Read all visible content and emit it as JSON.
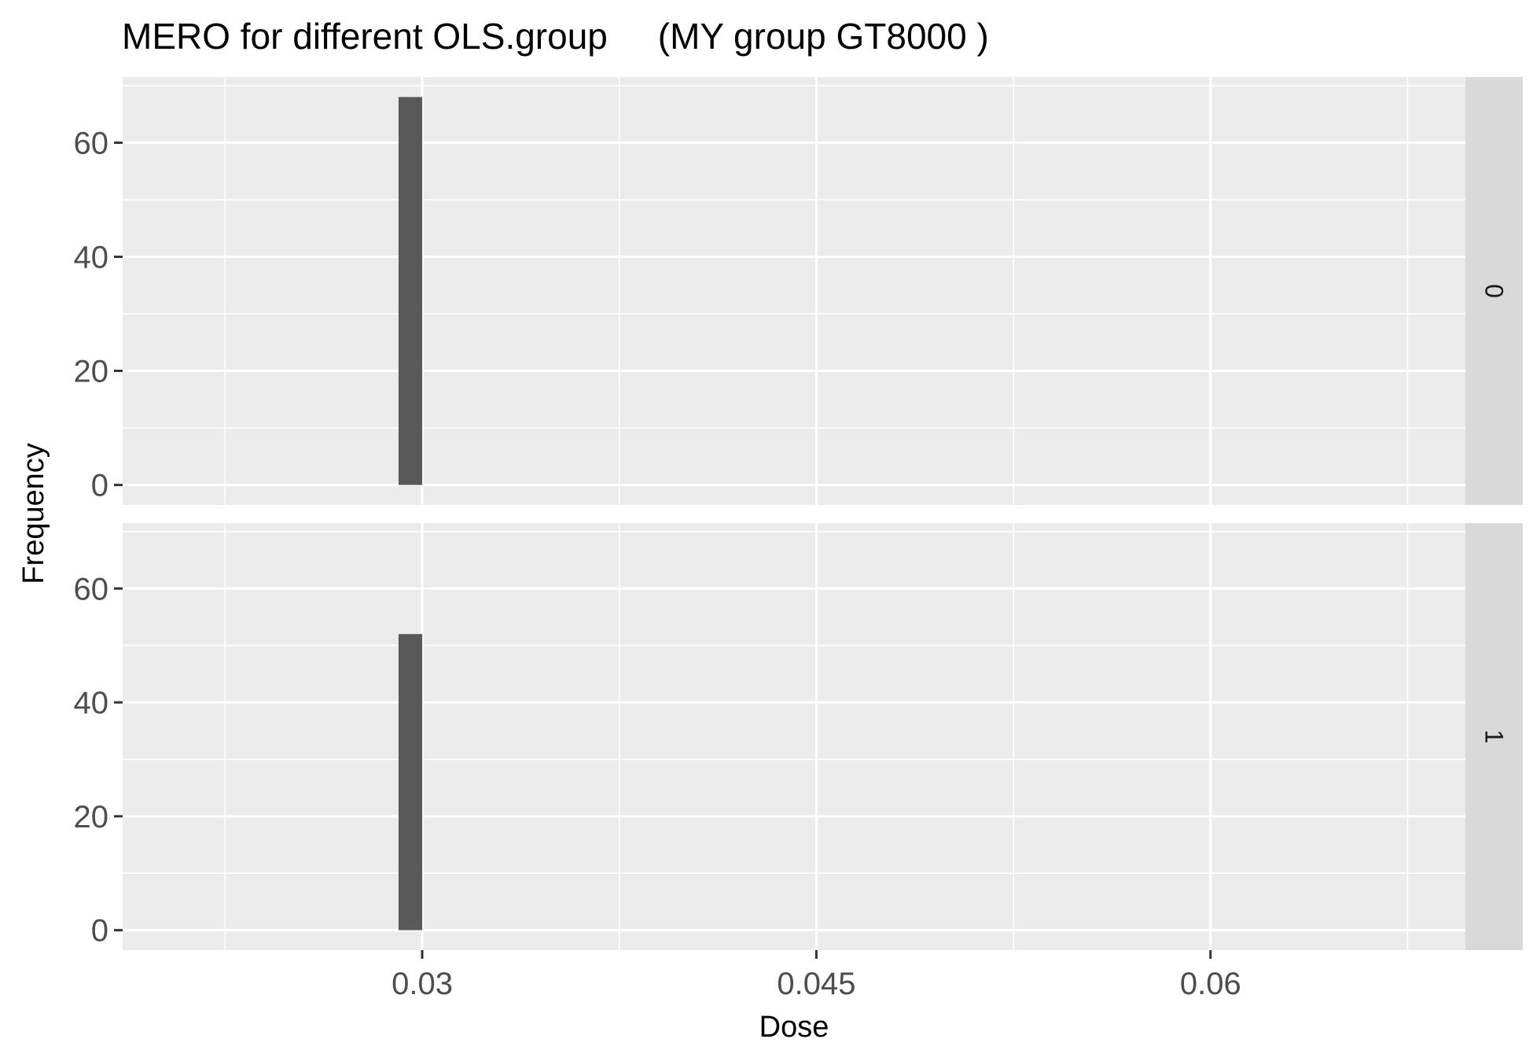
{
  "chart_data": {
    "type": "bar",
    "title": "MERO for different OLS.group     (MY group GT8000 )",
    "xlabel": "Dose",
    "ylabel": "Frequency",
    "x_ticks": [
      0.03,
      0.045,
      0.06
    ],
    "x_tick_labels": [
      "0.03",
      "0.045",
      "0.06"
    ],
    "x_minor_breaks": [
      0.0225,
      0.0375,
      0.0525,
      0.0675
    ],
    "xlim": [
      0.0186,
      0.0697
    ],
    "y_ticks": [
      0,
      20,
      40,
      60
    ],
    "y_tick_labels": [
      "0",
      "20",
      "40",
      "60"
    ],
    "y_minor_breaks": [
      10,
      30,
      50,
      70
    ],
    "ylim": [
      -3.5,
      71.5
    ],
    "grid": true,
    "facet_variable": "OLS.group",
    "bar_color": "#595959",
    "panel_background": "#ebebeb",
    "strip_background": "#d9d9d9",
    "panels": [
      {
        "strip_label": "0",
        "bars": [
          {
            "xmin": 0.0291,
            "xmax": 0.03,
            "value": 68
          }
        ]
      },
      {
        "strip_label": "1",
        "bars": [
          {
            "xmin": 0.0291,
            "xmax": 0.03,
            "value": 52
          }
        ]
      }
    ]
  }
}
